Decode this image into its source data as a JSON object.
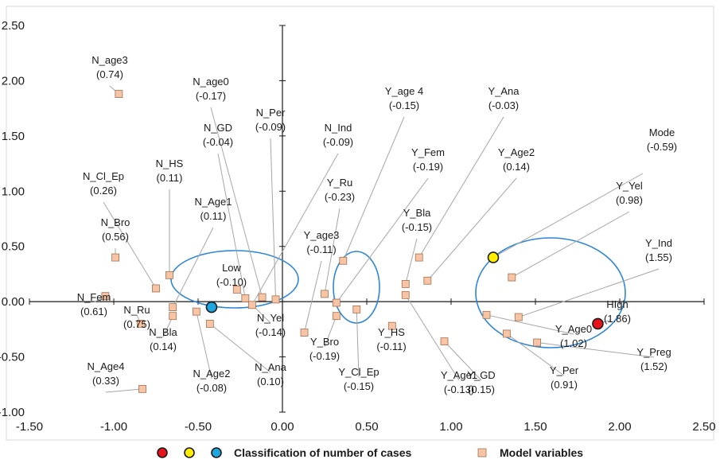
{
  "chart_data": {
    "type": "scatter",
    "title": "",
    "xlabel": "",
    "ylabel": "",
    "xlim": [
      -1.5,
      2.5
    ],
    "ylim": [
      -1.0,
      2.5
    ],
    "x_ticks": [
      -1.5,
      -1.0,
      -0.5,
      0.0,
      0.5,
      1.0,
      1.5,
      2.0,
      2.5
    ],
    "y_ticks": [
      -1.0,
      -0.5,
      0.0,
      0.5,
      1.0,
      1.5,
      2.0,
      2.5
    ],
    "x_tick_labels": [
      "-1.50",
      "-1.00",
      "-0.50",
      "0.00",
      "0.50",
      "1.00",
      "1.50",
      "2.00",
      "2.50"
    ],
    "y_tick_labels": [
      "-1.00",
      "-0.50",
      "0.00",
      "0.50",
      "1.00",
      "1.50",
      "2.00",
      "2.50"
    ],
    "grid": false,
    "legend": {
      "placement": "bottom",
      "classification_label": "Classification of number of cases",
      "model_label": "Model variables",
      "classification_colors": [
        "#e8141b",
        "#ffee00",
        "#1ea6e0"
      ]
    },
    "colors": {
      "marker_fill": "#f7c5a5",
      "marker_edge": "#a07050",
      "cluster_ellipse": "#2e86d6",
      "leader_line": "#a6a6a6"
    },
    "clusters": [
      {
        "name": "Low",
        "value": "(-0.10)",
        "x": -0.42,
        "y": -0.05,
        "color": "#1ea6e0"
      },
      {
        "name": "Mode",
        "value": "(-0.59)",
        "x": 1.25,
        "y": 0.4,
        "color": "#ffee00"
      },
      {
        "name": "HIgh",
        "value": "(1.86)",
        "x": 1.87,
        "y": -0.2,
        "color": "#e8141b"
      }
    ],
    "model_variables": [
      {
        "name": "N_age3",
        "value": "(0.74)",
        "x": -0.97,
        "y": 1.88
      },
      {
        "name": "N_age0",
        "value": "(-0.17)",
        "x": -0.12,
        "y": 0.04
      },
      {
        "name": "N_Per",
        "value": "(-0.09)",
        "x": -0.04,
        "y": 0.02
      },
      {
        "name": "N_GD",
        "value": "(-0.04)",
        "x": -0.22,
        "y": 0.03
      },
      {
        "name": "N_Ind",
        "value": "(-0.09)",
        "x": -0.18,
        "y": -0.03
      },
      {
        "name": "N_HS",
        "value": "(0.11)",
        "x": -0.67,
        "y": 0.24
      },
      {
        "name": "N_Cl_Ep",
        "value": "(0.26)",
        "x": -0.75,
        "y": 0.12
      },
      {
        "name": "N_Age1",
        "value": "(0.11)",
        "x": -0.65,
        "y": -0.05
      },
      {
        "name": "N_Bro",
        "value": "(0.56)",
        "x": -0.99,
        "y": 0.4
      },
      {
        "name": "N_Fem",
        "value": "(0.61)",
        "x": -1.05,
        "y": 0.05
      },
      {
        "name": "N_Ru",
        "value": "(0.75)",
        "x": -0.84,
        "y": -0.2
      },
      {
        "name": "N_Bla",
        "value": "(0.14)",
        "x": -0.65,
        "y": -0.13
      },
      {
        "name": "N_Age4",
        "value": "(0.33)",
        "x": -0.83,
        "y": -0.79
      },
      {
        "name": "N_Age2",
        "value": "(-0.08)",
        "x": -0.51,
        "y": -0.09
      },
      {
        "name": "N_Ana",
        "value": "(0.10)",
        "x": -0.43,
        "y": -0.2
      },
      {
        "name": "N_Yel",
        "value": "(-0.14)",
        "x": -0.27,
        "y": 0.11
      },
      {
        "name": "Y_age 4",
        "value": "(-0.15)",
        "x": 0.36,
        "y": 0.37
      },
      {
        "name": "Y_Fem",
        "value": "(-0.19)",
        "x": 0.32,
        "y": -0.01
      },
      {
        "name": "Y_Ru",
        "value": "(-0.23)",
        "x": 0.25,
        "y": 0.07
      },
      {
        "name": "Y_age3",
        "value": "(-0.11)",
        "x": 0.13,
        "y": -0.28
      },
      {
        "name": "Y_Bro",
        "value": "(-0.19)",
        "x": 0.32,
        "y": -0.13
      },
      {
        "name": "Y_Cl_Ep",
        "value": "(-0.15)",
        "x": 0.44,
        "y": -0.07
      },
      {
        "name": "Y_HS",
        "value": "(-0.11)",
        "x": 0.65,
        "y": -0.22
      },
      {
        "name": "Y_Bla",
        "value": "(-0.15)",
        "x": 0.73,
        "y": 0.16
      },
      {
        "name": "Y_Age1",
        "value": "(-0.13)",
        "x": 0.73,
        "y": 0.06
      },
      {
        "name": "Y_Ana",
        "value": "(-0.03)",
        "x": 0.81,
        "y": 0.4
      },
      {
        "name": "Y_Age2",
        "value": "(0.14)",
        "x": 0.86,
        "y": 0.19
      },
      {
        "name": "Y_GD",
        "value": "(0.15)",
        "x": 0.96,
        "y": -0.36
      },
      {
        "name": "Y_Age0",
        "value": "(1.02)",
        "x": 1.21,
        "y": -0.12
      },
      {
        "name": "Y_Yel",
        "value": "(0.98)",
        "x": 1.36,
        "y": 0.22
      },
      {
        "name": "Y_Ind",
        "value": "(1.55)",
        "x": 1.4,
        "y": -0.14
      },
      {
        "name": "Y_Per",
        "value": "(0.91)",
        "x": 1.33,
        "y": -0.29
      },
      {
        "name": "Y_Preg",
        "value": "(1.52)",
        "x": 1.51,
        "y": -0.37
      }
    ]
  }
}
